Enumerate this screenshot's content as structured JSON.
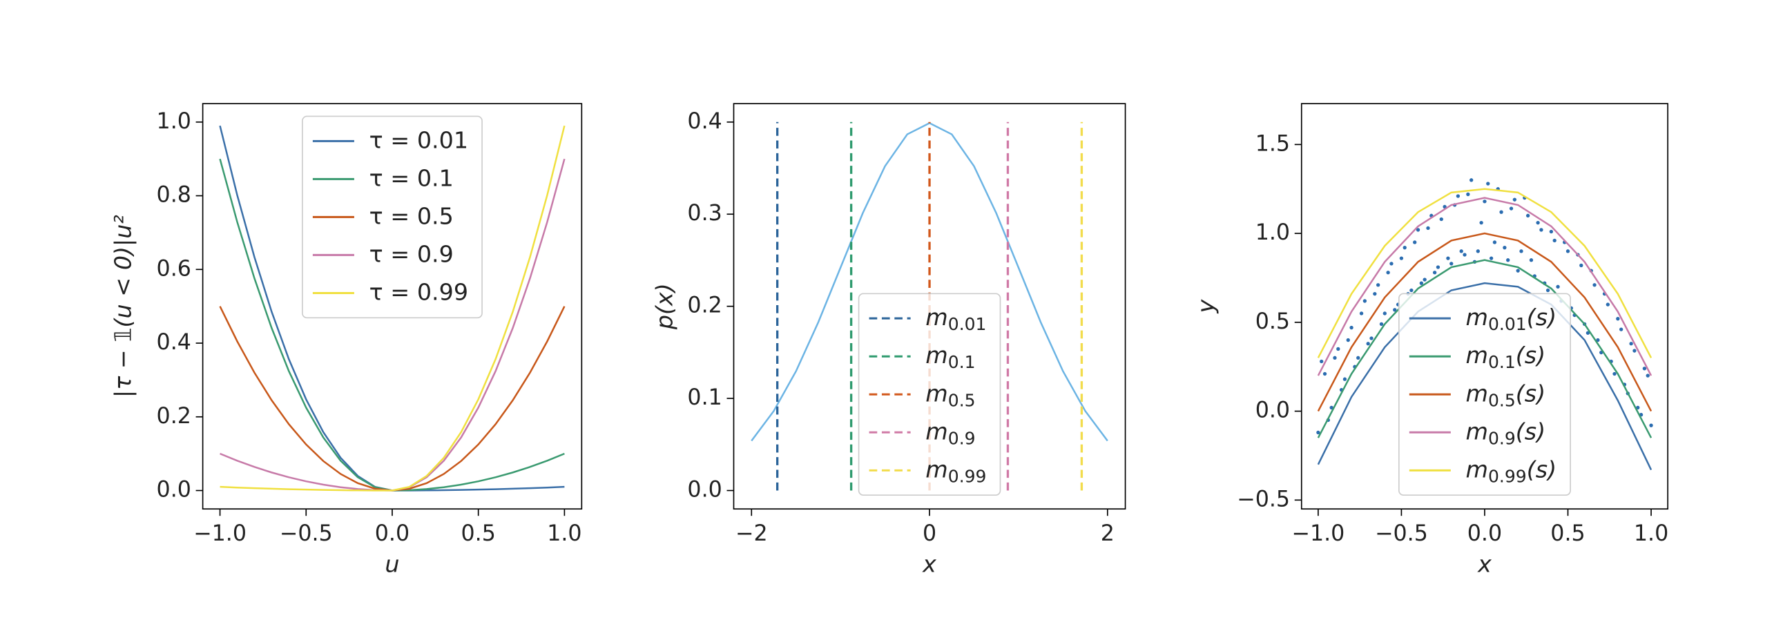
{
  "chart_data": [
    {
      "type": "line",
      "xlabel": "u",
      "ylabel": "|τ − 𝟙(u < 0)|u²",
      "legend": "upper center",
      "xlim": [
        -1.1,
        1.1
      ],
      "ylim": [
        -0.05,
        1.05
      ],
      "xticks": [
        {
          "value": -1,
          "label": "−1.0"
        },
        {
          "value": -0.5,
          "label": "−0.5"
        },
        {
          "value": 0,
          "label": "0.0"
        },
        {
          "value": 0.5,
          "label": "0.5"
        },
        {
          "value": 1,
          "label": "1.0"
        }
      ],
      "yticks": [
        {
          "value": 0,
          "label": "0.0"
        },
        0.2,
        0.4,
        0.6,
        0.8,
        {
          "value": 1,
          "label": "1.0"
        }
      ],
      "x": [
        -1,
        -0.9,
        -0.8,
        -0.7,
        -0.6,
        -0.5,
        -0.4,
        -0.3,
        -0.2,
        -0.1,
        0,
        0.1,
        0.2,
        0.3,
        0.4,
        0.5,
        0.6,
        0.7,
        0.8,
        0.9,
        1
      ],
      "series": [
        {
          "name": "τ = 0.01",
          "color": "#3a6fa8",
          "values": [
            0.99,
            0.8019,
            0.6336,
            0.4851,
            0.3564,
            0.2475,
            0.1584,
            0.0891,
            0.0396,
            0.0099,
            0,
            0.0001,
            0.0004,
            0.0009,
            0.0016,
            0.0025,
            0.0036,
            0.0049,
            0.0064,
            0.0081,
            0.01
          ]
        },
        {
          "name": "τ = 0.1",
          "color": "#3a9a70",
          "values": [
            0.9,
            0.729,
            0.576,
            0.441,
            0.324,
            0.225,
            0.144,
            0.081,
            0.036,
            0.009,
            0,
            0.001,
            0.004,
            0.009,
            0.016,
            0.025,
            0.036,
            0.049,
            0.064,
            0.081,
            0.1
          ]
        },
        {
          "name": "τ = 0.5",
          "color": "#c8581a",
          "values": [
            0.5,
            0.405,
            0.32,
            0.245,
            0.18,
            0.125,
            0.08,
            0.045,
            0.02,
            0.005,
            0,
            0.005,
            0.02,
            0.045,
            0.08,
            0.125,
            0.18,
            0.245,
            0.32,
            0.405,
            0.5
          ]
        },
        {
          "name": "τ = 0.9",
          "color": "#c77aa8",
          "values": [
            0.1,
            0.081,
            0.064,
            0.049,
            0.036,
            0.025,
            0.016,
            0.009,
            0.004,
            0.001,
            0,
            0.009,
            0.036,
            0.081,
            0.144,
            0.225,
            0.324,
            0.441,
            0.576,
            0.729,
            0.9
          ]
        },
        {
          "name": "τ = 0.99",
          "color": "#f0e040",
          "values": [
            0.01,
            0.0081,
            0.0064,
            0.0049,
            0.0036,
            0.0025,
            0.0016,
            0.0009,
            0.0004,
            0.0001,
            0,
            0.0099,
            0.0396,
            0.0891,
            0.1584,
            0.2475,
            0.3564,
            0.4851,
            0.6336,
            0.8019,
            0.99
          ]
        }
      ]
    },
    {
      "type": "line",
      "xlabel": "x",
      "ylabel": "p(x)",
      "legend": "lower center",
      "xlim": [
        -2.2,
        2.2
      ],
      "ylim": [
        -0.02,
        0.42
      ],
      "xticks": [
        {
          "value": -2,
          "label": "−2"
        },
        0,
        2
      ],
      "yticks": [
        {
          "value": 0,
          "label": "0.0"
        },
        0.1,
        0.2,
        0.3,
        0.4
      ],
      "series": [
        {
          "color": "#6cb4e4",
          "x": [
            -2,
            -1.75,
            -1.5,
            -1.25,
            -1,
            -0.75,
            -0.5,
            -0.25,
            0,
            0.25,
            0.5,
            0.75,
            1,
            1.25,
            1.5,
            1.75,
            2
          ],
          "values": [
            0.054,
            0.0863,
            0.1295,
            0.1826,
            0.242,
            0.3011,
            0.3521,
            0.3867,
            0.3989,
            0.3867,
            0.3521,
            0.3011,
            0.242,
            0.1826,
            0.1295,
            0.0863,
            0.054
          ]
        },
        {
          "name": "m",
          "subscript": "0.01",
          "color": "#2a6399",
          "linestyle": "dashed",
          "x": [
            -1.71,
            -1.71
          ],
          "values": [
            0,
            0.4
          ]
        },
        {
          "name": "m",
          "subscript": "0.1",
          "color": "#2e9a6e",
          "linestyle": "dashed",
          "x": [
            -0.88,
            -0.88
          ],
          "values": [
            0,
            0.4
          ]
        },
        {
          "name": "m",
          "subscript": "0.5",
          "color": "#d2581c",
          "linestyle": "dashed",
          "x": [
            0,
            0
          ],
          "values": [
            0,
            0.4
          ]
        },
        {
          "name": "m",
          "subscript": "0.9",
          "color": "#d07aa6",
          "linestyle": "dashed",
          "x": [
            0.88,
            0.88
          ],
          "values": [
            0,
            0.4
          ]
        },
        {
          "name": "m",
          "subscript": "0.99",
          "color": "#f2dc4c",
          "linestyle": "dashed",
          "x": [
            1.71,
            1.71
          ],
          "values": [
            0,
            0.4
          ]
        }
      ]
    },
    {
      "type": "scatter",
      "xlabel": "x",
      "ylabel": "y",
      "legend": "lower center",
      "xlim": [
        -1.1,
        1.1
      ],
      "ylim": [
        -0.55,
        1.73
      ],
      "xticks": [
        {
          "value": -1,
          "label": "−1.0"
        },
        {
          "value": -0.5,
          "label": "−0.5"
        },
        {
          "value": 0,
          "label": "0.0"
        },
        {
          "value": 0.5,
          "label": "0.5"
        },
        {
          "value": 1,
          "label": "1.0"
        }
      ],
      "yticks": [
        {
          "value": -0.5,
          "label": "−0.5"
        },
        {
          "value": 0,
          "label": "0.0"
        },
        0.5,
        {
          "value": 1,
          "label": "1.0"
        },
        1.5
      ],
      "series": [
        {
          "type": "scatter",
          "color": "#2a6cb0",
          "x": [
            -1,
            -0.96,
            -0.92,
            -0.88,
            -0.84,
            -0.8,
            -0.76,
            -0.72,
            -0.68,
            -0.64,
            -0.6,
            -0.56,
            -0.52,
            -0.48,
            -0.44,
            -0.4,
            -0.36,
            -0.32,
            -0.28,
            -0.24,
            -0.2,
            -0.16,
            -0.12,
            -0.08,
            -0.04,
            0,
            0.04,
            0.08,
            0.12,
            0.16,
            0.2,
            0.24,
            0.28,
            0.32,
            0.36,
            0.4,
            0.44,
            0.48,
            0.52,
            0.56,
            0.6,
            0.64,
            0.68,
            0.72,
            0.76,
            0.8,
            0.84,
            0.88,
            0.92,
            0.96,
            1,
            -0.98,
            -0.94,
            -0.9,
            -0.86,
            -0.82,
            -0.78,
            -0.74,
            -0.7,
            -0.66,
            -0.62,
            -0.58,
            -0.54,
            -0.5,
            -0.46,
            -0.42,
            -0.38,
            -0.34,
            -0.3,
            -0.26,
            -0.22,
            -0.18,
            -0.14,
            -0.1,
            -0.06,
            -0.02,
            0.02,
            0.06,
            0.1,
            0.14,
            0.18,
            0.22,
            0.26,
            0.3,
            0.34,
            0.38,
            0.42,
            0.46,
            0.5,
            0.54,
            0.58,
            0.62,
            0.66,
            0.7,
            0.74,
            0.78,
            0.82,
            0.86,
            0.9,
            0.94,
            0.98
          ],
          "values": [
            -0.12,
            0.21,
            0.02,
            0.35,
            0.18,
            0.47,
            0.3,
            0.62,
            0.41,
            0.71,
            0.55,
            0.83,
            0.6,
            0.92,
            0.68,
            1.02,
            0.74,
            1.1,
            0.81,
            1.15,
            0.83,
            1.21,
            0.88,
            1.3,
            0.9,
            1.18,
            0.86,
            1.25,
            0.92,
            1.14,
            0.79,
            1.2,
            0.85,
            1.06,
            0.72,
            1.01,
            0.7,
            0.95,
            0.58,
            0.88,
            0.49,
            0.79,
            0.4,
            0.66,
            0.28,
            0.52,
            0.15,
            0.38,
            0.02,
            0.24,
            -0.08,
            0.28,
            -0.05,
            0.3,
            0.12,
            0.4,
            0.25,
            0.55,
            0.38,
            0.66,
            0.49,
            0.78,
            0.57,
            0.86,
            0.66,
            0.95,
            0.72,
            1.03,
            0.78,
            1.08,
            0.86,
            1.16,
            0.9,
            1.22,
            0.84,
            1.06,
            1.28,
            0.95,
            1.12,
            0.85,
            1.19,
            0.9,
            1.1,
            0.76,
            1.02,
            0.68,
            0.96,
            0.62,
            0.9,
            0.54,
            0.82,
            0.44,
            0.71,
            0.33,
            0.6,
            0.21,
            0.46,
            0.1,
            0.34,
            -0.02,
            0.2
          ]
        },
        {
          "type": "line",
          "name": "m",
          "subscript": "0.01",
          "suffix": "(s)",
          "color": "#3a6fa8",
          "x": [
            -1,
            -0.8,
            -0.6,
            -0.4,
            -0.2,
            0,
            0.2,
            0.4,
            0.6,
            0.8,
            1
          ],
          "values": [
            -0.3,
            0.08,
            0.36,
            0.56,
            0.68,
            0.72,
            0.7,
            0.6,
            0.4,
            0.06,
            -0.33
          ]
        },
        {
          "type": "line",
          "name": "m",
          "subscript": "0.1",
          "suffix": "(s)",
          "color": "#3a9a70",
          "x": [
            -1,
            -0.8,
            -0.6,
            -0.4,
            -0.2,
            0,
            0.2,
            0.4,
            0.6,
            0.8,
            1
          ],
          "values": [
            -0.15,
            0.21,
            0.49,
            0.69,
            0.81,
            0.85,
            0.81,
            0.69,
            0.49,
            0.21,
            -0.15
          ]
        },
        {
          "type": "line",
          "name": "m",
          "subscript": "0.5",
          "suffix": "(s)",
          "color": "#c8581a",
          "x": [
            -1,
            -0.8,
            -0.6,
            -0.4,
            -0.2,
            0,
            0.2,
            0.4,
            0.6,
            0.8,
            1
          ],
          "values": [
            0,
            0.36,
            0.64,
            0.84,
            0.96,
            1,
            0.96,
            0.84,
            0.64,
            0.36,
            0
          ]
        },
        {
          "type": "line",
          "name": "m",
          "subscript": "0.9",
          "suffix": "(s)",
          "color": "#c77aa8",
          "x": [
            -1,
            -0.8,
            -0.6,
            -0.4,
            -0.2,
            0,
            0.2,
            0.4,
            0.6,
            0.8,
            1
          ],
          "values": [
            0.2,
            0.56,
            0.84,
            1.04,
            1.16,
            1.2,
            1.16,
            1.04,
            0.84,
            0.56,
            0.2
          ]
        },
        {
          "type": "line",
          "name": "m",
          "subscript": "0.99",
          "suffix": "(s)",
          "color": "#f0e040",
          "x": [
            -1,
            -0.8,
            -0.6,
            -0.4,
            -0.2,
            0,
            0.2,
            0.4,
            0.6,
            0.8,
            1
          ],
          "values": [
            0.3,
            0.66,
            0.93,
            1.12,
            1.23,
            1.25,
            1.23,
            1.12,
            0.93,
            0.66,
            0.3
          ]
        }
      ]
    }
  ]
}
